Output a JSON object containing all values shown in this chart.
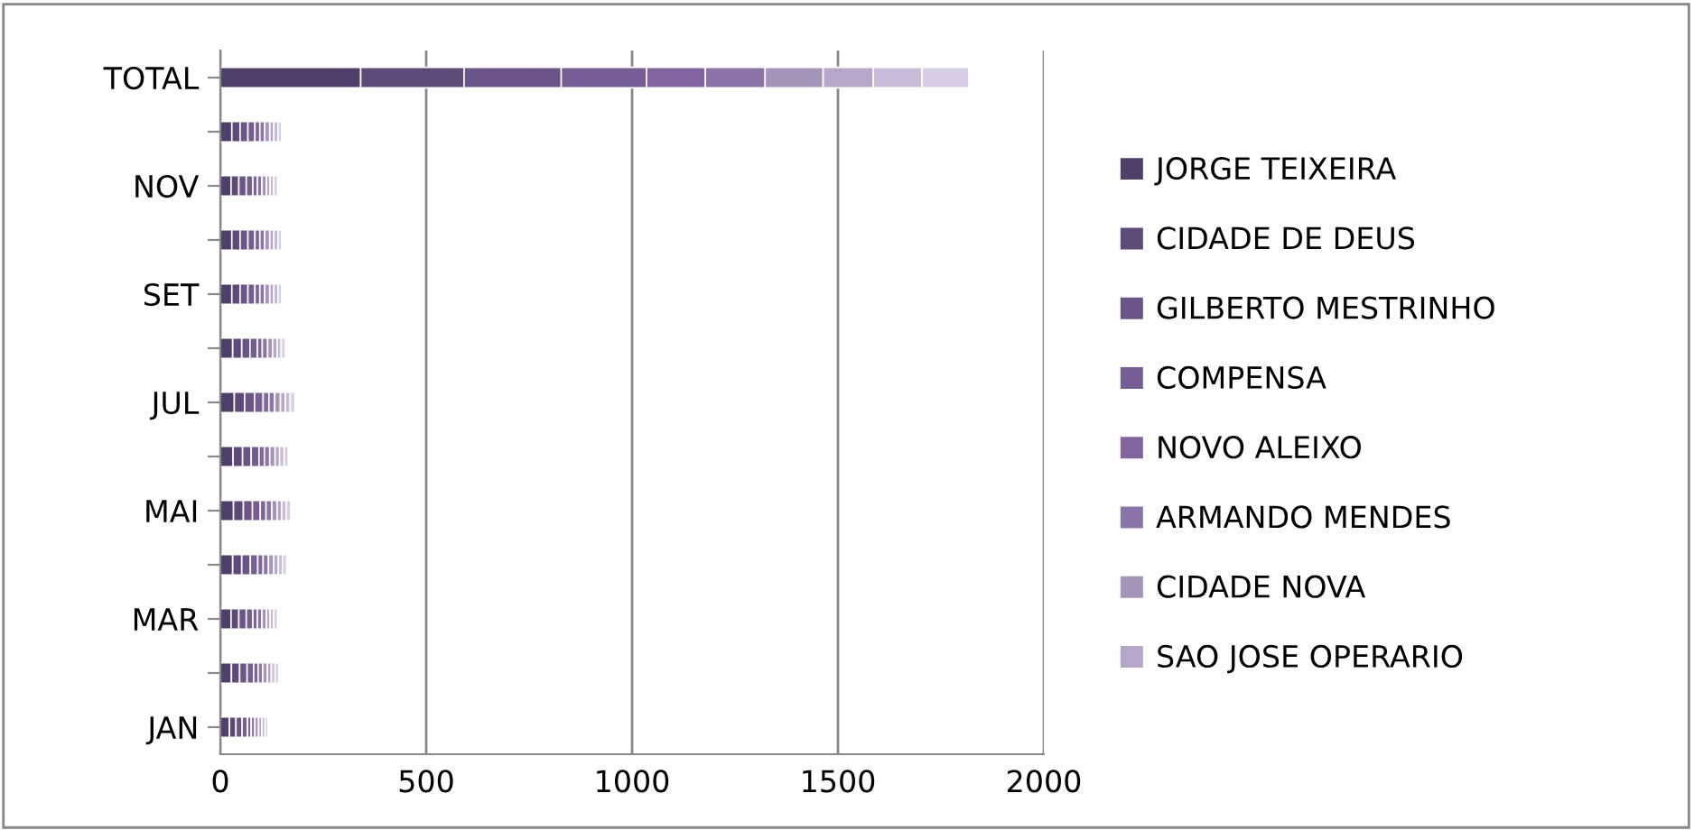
{
  "chart_data": {
    "type": "bar",
    "orientation": "horizontal",
    "stacked": true,
    "categories": [
      "TOTAL",
      null,
      "NOV",
      null,
      "SET",
      null,
      "JUL",
      null,
      "MAI",
      null,
      "MAR",
      null,
      "JAN"
    ],
    "series": [
      {
        "name": "JORGE TEIXEIRA",
        "color": "#4f3f6b",
        "values": [
          341,
          28,
          26,
          28,
          28,
          30,
          34,
          31,
          32,
          30,
          26,
          27,
          22
        ]
      },
      {
        "name": "CIDADE DE DEUS",
        "color": "#5d4a7a",
        "values": [
          251,
          20,
          19,
          20,
          20,
          22,
          25,
          23,
          24,
          22,
          19,
          20,
          16
        ]
      },
      {
        "name": "GILBERTO MESTRINHO",
        "color": "#6b5489",
        "values": [
          236,
          19,
          18,
          19,
          19,
          20,
          24,
          21,
          22,
          21,
          18,
          18,
          15
        ]
      },
      {
        "name": "COMPENSA",
        "color": "#765d95",
        "values": [
          207,
          17,
          16,
          17,
          17,
          18,
          21,
          19,
          19,
          18,
          16,
          16,
          13
        ]
      },
      {
        "name": "NOVO ALEIXO",
        "color": "#7f64a0",
        "values": [
          143,
          12,
          11,
          12,
          12,
          12,
          14,
          13,
          14,
          13,
          11,
          11,
          9
        ]
      },
      {
        "name": "ARMANDO MENDES",
        "color": "#8a74aa",
        "values": [
          145,
          12,
          11,
          12,
          12,
          13,
          14,
          13,
          14,
          13,
          11,
          11,
          9
        ]
      },
      {
        "name": "CIDADE NOVA",
        "color": "#a394b9",
        "values": [
          141,
          12,
          11,
          12,
          12,
          12,
          14,
          13,
          13,
          13,
          11,
          11,
          9
        ]
      },
      {
        "name": "SAO JOSE OPERARIO",
        "color": "#b4a7c9",
        "values": [
          122,
          10,
          9,
          10,
          10,
          11,
          12,
          11,
          11,
          11,
          9,
          10,
          8
        ]
      },
      {
        "color": "#c6bbd8",
        "values": [
          118,
          10,
          9,
          10,
          10,
          10,
          12,
          11,
          11,
          10,
          9,
          9,
          8
        ]
      },
      {
        "color": "#d6cfe3",
        "values": [
          114,
          9,
          9,
          9,
          9,
          10,
          11,
          10,
          11,
          10,
          9,
          9,
          7
        ]
      }
    ],
    "xlim": [
      0,
      2000
    ],
    "xticks": [
      0,
      500,
      1000,
      1500,
      2000
    ],
    "grid": "x",
    "legend": "right"
  }
}
